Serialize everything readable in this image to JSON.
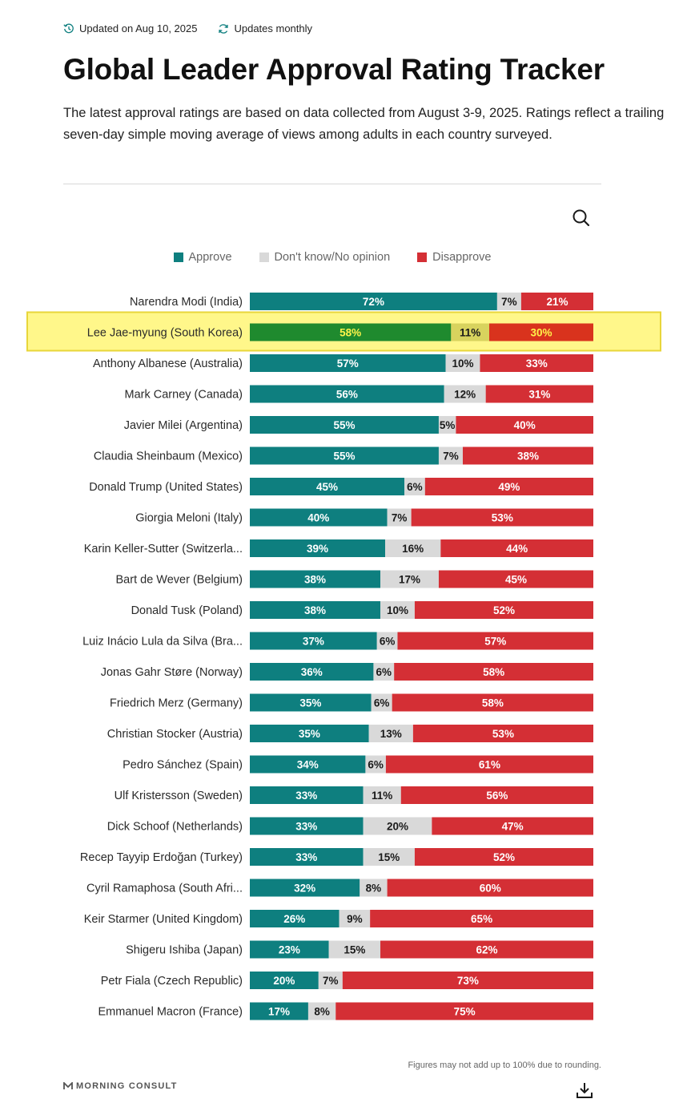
{
  "header": {
    "updated": "Updated on Aug 10, 2025",
    "frequency": "Updates monthly",
    "title": "Global Leader Approval Rating Tracker",
    "description": "The latest approval ratings are based on data collected from August 3-9, 2025. Ratings reflect a trailing seven-day simple moving average of views among adults in each country surveyed."
  },
  "icons": {
    "updated": "history-clock-icon",
    "frequency": "refresh-icon",
    "search": "search-icon",
    "download": "download-icon",
    "brand": "morning-consult-logo-icon"
  },
  "colors": {
    "approve": "#0e7f7f",
    "neutral": "#d9d9d9",
    "disapprove": "#d42f35",
    "highlight_bg": "#fff78a",
    "highlight_border": "#e8d63a",
    "highlight_approve": "#1f8a2e",
    "highlight_neutral": "#d8d35e",
    "highlight_disapprove": "#d9331d",
    "highlight_text": "#fff44a"
  },
  "chart_data": {
    "type": "bar",
    "orientation": "horizontal-stacked-100",
    "legend": [
      "Approve",
      "Don't know/No opinion",
      "Disapprove"
    ],
    "legend_position": "top-center",
    "unit": "%",
    "highlighted_category": "Lee Jae-myung (South Korea)",
    "categories": [
      "Narendra Modi (India)",
      "Lee Jae-myung (South Korea)",
      "Anthony Albanese (Australia)",
      "Mark Carney (Canada)",
      "Javier Milei (Argentina)",
      "Claudia Sheinbaum (Mexico)",
      "Donald Trump (United States)",
      "Giorgia Meloni (Italy)",
      "Karin Keller-Sutter (Switzerla...",
      "Bart de Wever (Belgium)",
      "Donald Tusk (Poland)",
      "Luiz Inácio Lula da Silva (Bra...",
      "Jonas Gahr Støre (Norway)",
      "Friedrich Merz (Germany)",
      "Christian Stocker (Austria)",
      "Pedro Sánchez (Spain)",
      "Ulf Kristersson (Sweden)",
      "Dick Schoof (Netherlands)",
      "Recep Tayyip Erdoğan (Turkey)",
      "Cyril Ramaphosa (South Afri...",
      "Keir Starmer (United Kingdom)",
      "Shigeru Ishiba (Japan)",
      "Petr Fiala (Czech Republic)",
      "Emmanuel Macron (France)"
    ],
    "series": [
      {
        "name": "Approve",
        "values": [
          72,
          58,
          57,
          56,
          55,
          55,
          45,
          40,
          39,
          38,
          38,
          37,
          36,
          35,
          35,
          34,
          33,
          33,
          33,
          32,
          26,
          23,
          20,
          17
        ]
      },
      {
        "name": "Don't know/No opinion",
        "values": [
          7,
          11,
          10,
          12,
          5,
          7,
          6,
          7,
          16,
          17,
          10,
          6,
          6,
          6,
          13,
          6,
          11,
          20,
          15,
          8,
          9,
          15,
          7,
          8
        ]
      },
      {
        "name": "Disapprove",
        "values": [
          21,
          30,
          33,
          31,
          40,
          38,
          49,
          53,
          44,
          45,
          52,
          57,
          58,
          58,
          53,
          61,
          56,
          47,
          52,
          60,
          65,
          62,
          73,
          75
        ]
      }
    ]
  },
  "footer": {
    "note": "Figures may not add up to 100% due to rounding.",
    "brand": "MORNING CONSULT"
  }
}
